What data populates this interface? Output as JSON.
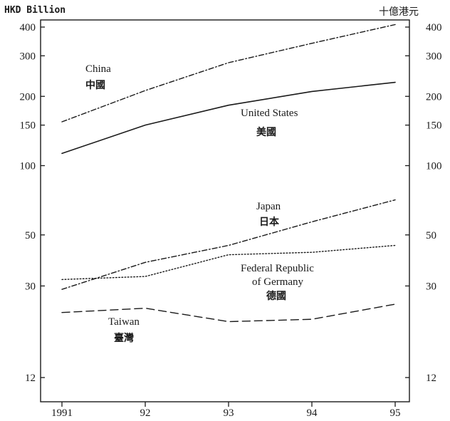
{
  "chart_data": {
    "type": "line",
    "y_scale": "log",
    "ylim": [
      11,
      420
    ],
    "ylabel_left": "HKD Billion",
    "ylabel_right": "十億港元",
    "y_ticks": [
      12,
      30,
      50,
      100,
      150,
      200,
      300,
      400
    ],
    "y_tick_labels": [
      "12",
      "30",
      "50",
      "100",
      "150",
      "200",
      "300",
      "400"
    ],
    "x": [
      1991,
      1992,
      1993,
      1994,
      1995
    ],
    "x_tick_labels": [
      "1991",
      "92",
      "93",
      "94",
      "95"
    ],
    "grid": false,
    "series": [
      {
        "name": "China",
        "name_zh": "中國",
        "style": "dash-dot",
        "values": [
          155,
          212,
          280,
          340,
          410
        ]
      },
      {
        "name": "United States",
        "name_zh": "美國",
        "style": "solid",
        "values": [
          113,
          150,
          183,
          210,
          230
        ]
      },
      {
        "name": "Japan",
        "name_zh": "日本",
        "style": "dash-dot",
        "values": [
          29,
          38,
          45,
          57,
          71
        ]
      },
      {
        "name": "Federal Republic of Germany",
        "name_zh": "德國",
        "style": "dotted",
        "values": [
          32,
          33,
          41,
          42,
          45
        ]
      },
      {
        "name": "Taiwan",
        "name_zh": "臺灣",
        "style": "dashed",
        "values": [
          23,
          24,
          21,
          21.5,
          25
        ]
      }
    ]
  }
}
